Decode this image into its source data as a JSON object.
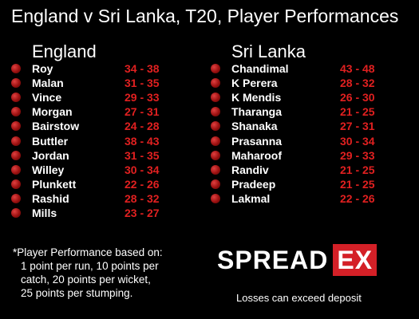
{
  "title": "England v Sri Lanka, T20, Player Performances",
  "england": {
    "name": "England",
    "players": [
      {
        "name": "Roy",
        "score": "34 - 38"
      },
      {
        "name": "Malan",
        "score": "31 - 35"
      },
      {
        "name": "Vince",
        "score": "29 - 33"
      },
      {
        "name": "Morgan",
        "score": "27 - 31"
      },
      {
        "name": "Bairstow",
        "score": "24 - 28"
      },
      {
        "name": "Buttler",
        "score": "38 - 43"
      },
      {
        "name": "Jordan",
        "score": "31 - 35"
      },
      {
        "name": "Willey",
        "score": "30 - 34"
      },
      {
        "name": "Plunkett",
        "score": "22 - 26"
      },
      {
        "name": "Rashid",
        "score": "28 - 32"
      },
      {
        "name": "Mills",
        "score": "23 - 27"
      }
    ]
  },
  "sri_lanka": {
    "name": "Sri Lanka",
    "players": [
      {
        "name": "Chandimal",
        "score": "43 - 48"
      },
      {
        "name": "K Perera",
        "score": "28 - 32"
      },
      {
        "name": "K Mendis",
        "score": "26 - 30"
      },
      {
        "name": "Tharanga",
        "score": "21 - 25"
      },
      {
        "name": "Shanaka",
        "score": "27 - 31"
      },
      {
        "name": "Prasanna",
        "score": "30 - 34"
      },
      {
        "name": "Maharoof",
        "score": "29 - 33"
      },
      {
        "name": "Randiv",
        "score": "21 - 25"
      },
      {
        "name": "Pradeep",
        "score": "21 - 25"
      },
      {
        "name": "Lakmal",
        "score": "22 - 26"
      }
    ]
  },
  "footnote": {
    "heading": "*Player Performance based on:",
    "lines": [
      "1 point per run, 10 points per",
      "catch, 20 points per wicket,",
      "25 points per stumping."
    ]
  },
  "logo": {
    "word": "SPREAD",
    "box": "EX"
  },
  "disclaimer": "Losses can exceed deposit",
  "colors": {
    "background": "#000000",
    "score": "#e02020",
    "logo_box": "#d42027"
  },
  "icons": {
    "row_marker": "cricket-ball-icon"
  }
}
